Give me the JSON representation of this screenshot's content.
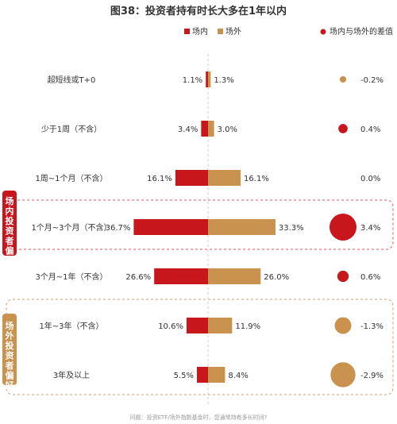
{
  "chart_data": {
    "type": "bar",
    "title": "图38：投资者持有时长大多在1年以内",
    "legend": [
      "场内",
      "场外"
    ],
    "diff_legend": "场内与场外的差值",
    "categories": [
      "超短线或T+0",
      "少于1周（不含）",
      "1周~1个月（不含）",
      "1个月~3个月（不含）",
      "3个月~1年（不含）",
      "1年~3年（不含）",
      "3年及以上"
    ],
    "series": [
      {
        "name": "场内",
        "values": [
          1.1,
          3.4,
          16.1,
          36.7,
          26.6,
          10.6,
          5.5
        ]
      },
      {
        "name": "场外",
        "values": [
          1.3,
          3.0,
          16.1,
          33.3,
          26.0,
          11.9,
          8.4
        ]
      }
    ],
    "value_labels": {
      "inside": [
        "1.1%",
        "3.4%",
        "16.1%",
        "36.7%",
        "26.6%",
        "10.6%",
        "5.5%"
      ],
      "outside": [
        "1.3%",
        "3.0%",
        "16.1%",
        "33.3%",
        "26.0%",
        "11.9%",
        "8.4%"
      ]
    },
    "diff": [
      -0.2,
      0.4,
      0.0,
      3.4,
      0.6,
      -1.3,
      -2.9
    ],
    "diff_labels": [
      "-0.2%",
      "0.4%",
      "0.0%",
      "3.4%",
      "0.6%",
      "-1.3%",
      "-2.9%"
    ],
    "groups": [
      {
        "label": "场内投资者偏好"
      },
      {
        "label": "场外投资者偏好"
      }
    ],
    "footnote": "问题：投资ETF/场外指数基金时，您通常持有多长时间?",
    "colors": {
      "inside": "#c8161d",
      "outside": "#c9924e",
      "group_inside_border": "#e05a5a",
      "group_outside_border": "#c9a06a",
      "grid": "#cccccc"
    }
  }
}
